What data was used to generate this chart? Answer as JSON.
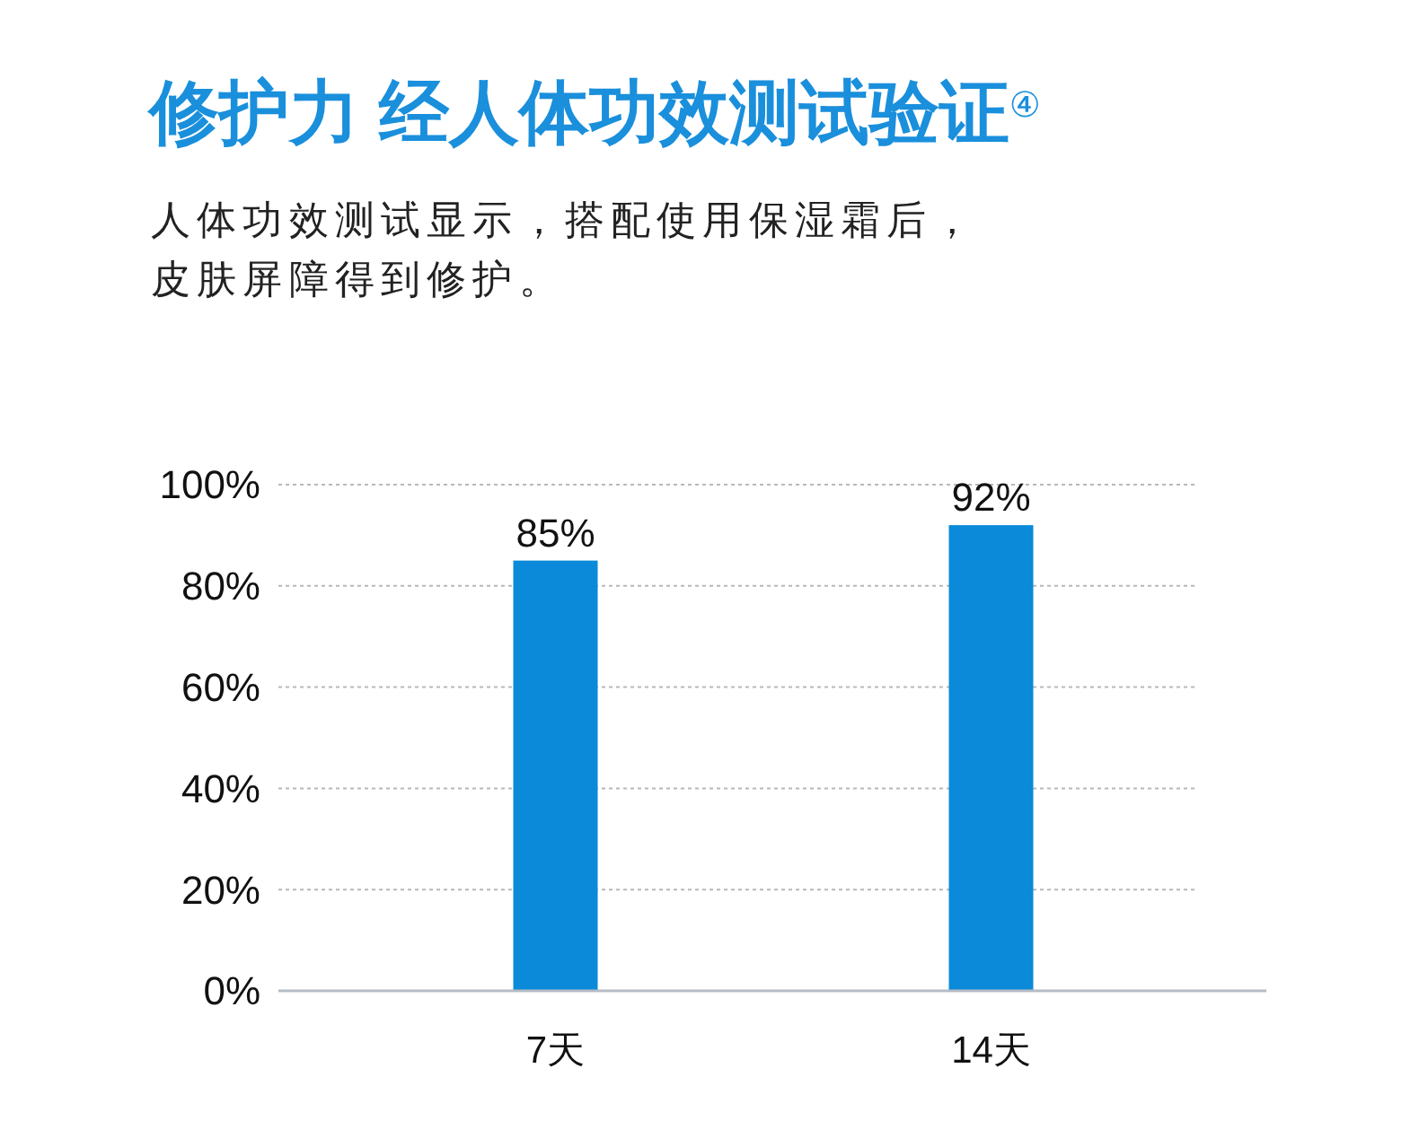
{
  "chart_data": {
    "type": "bar",
    "title": "修护力 经人体功效测试验证$^{④}$",
    "subtitle": "人体功效测试显示，搭配使用保湿霜后，皮肤屏障得到修护。",
    "categories": [
      "7天",
      "14天"
    ],
    "values": [
      85,
      92
    ],
    "value_labels": [
      "85%",
      "92%"
    ],
    "color": "#0a8ad8",
    "ylim": [
      0,
      100
    ],
    "yticks": [
      {
        "value": 0,
        "label": "0%"
      },
      {
        "value": 20,
        "label": "20%"
      },
      {
        "value": 40,
        "label": "40%"
      },
      {
        "value": 60,
        "label": "60%"
      },
      {
        "value": 80,
        "label": "80%"
      },
      {
        "value": 100,
        "label": "100%"
      }
    ],
    "grid": "y"
  }
}
